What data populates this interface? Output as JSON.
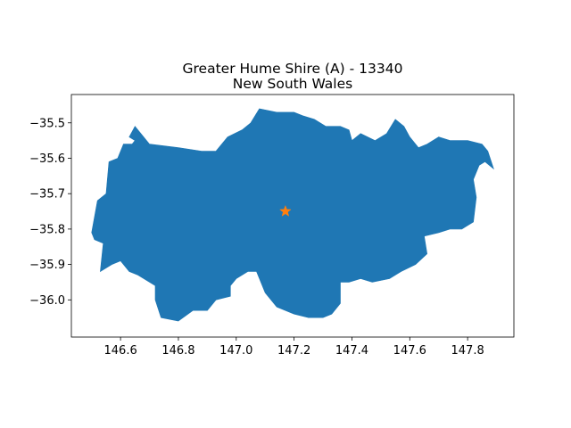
{
  "title": {
    "line1": "Greater Hume Shire (A) - 13340",
    "line2": "New South Wales"
  },
  "colors": {
    "region_fill": "#1f77b4",
    "marker": "#ff7f0e",
    "axes": "#000000",
    "background": "#ffffff"
  },
  "chart_data": {
    "type": "map",
    "xlim": [
      146.43,
      147.96
    ],
    "ylim": [
      -36.105,
      -35.42
    ],
    "x_ticks": [
      146.6,
      146.8,
      147.0,
      147.2,
      147.4,
      147.6,
      147.8
    ],
    "x_tick_labels": [
      "146.6",
      "146.8",
      "147.0",
      "147.2",
      "147.4",
      "147.6",
      "147.8"
    ],
    "y_ticks": [
      -35.5,
      -35.6,
      -35.7,
      -35.8,
      -35.9,
      -36.0
    ],
    "y_tick_labels": [
      "−35.5",
      "−35.6",
      "−35.7",
      "−35.8",
      "−35.9",
      "−36.0"
    ],
    "grid": false,
    "marker": {
      "symbol": "star",
      "lon": 147.17,
      "lat": -35.75
    },
    "region_outline": [
      [
        146.5,
        -35.81
      ],
      [
        146.52,
        -35.72
      ],
      [
        146.55,
        -35.7
      ],
      [
        146.56,
        -35.61
      ],
      [
        146.59,
        -35.6
      ],
      [
        146.61,
        -35.56
      ],
      [
        146.64,
        -35.56
      ],
      [
        146.65,
        -35.55
      ],
      [
        146.63,
        -35.54
      ],
      [
        146.65,
        -35.51
      ],
      [
        146.7,
        -35.56
      ],
      [
        146.8,
        -35.57
      ],
      [
        146.88,
        -35.58
      ],
      [
        146.93,
        -35.58
      ],
      [
        146.97,
        -35.54
      ],
      [
        147.02,
        -35.52
      ],
      [
        147.05,
        -35.5
      ],
      [
        147.08,
        -35.46
      ],
      [
        147.14,
        -35.47
      ],
      [
        147.18,
        -35.47
      ],
      [
        147.2,
        -35.47
      ],
      [
        147.23,
        -35.48
      ],
      [
        147.27,
        -35.49
      ],
      [
        147.31,
        -35.51
      ],
      [
        147.36,
        -35.51
      ],
      [
        147.39,
        -35.52
      ],
      [
        147.4,
        -35.55
      ],
      [
        147.43,
        -35.53
      ],
      [
        147.48,
        -35.55
      ],
      [
        147.52,
        -35.53
      ],
      [
        147.55,
        -35.49
      ],
      [
        147.58,
        -35.51
      ],
      [
        147.6,
        -35.54
      ],
      [
        147.63,
        -35.57
      ],
      [
        147.66,
        -35.56
      ],
      [
        147.7,
        -35.54
      ],
      [
        147.74,
        -35.55
      ],
      [
        147.8,
        -35.55
      ],
      [
        147.85,
        -35.56
      ],
      [
        147.87,
        -35.58
      ],
      [
        147.89,
        -35.63
      ],
      [
        147.86,
        -35.61
      ],
      [
        147.84,
        -35.62
      ],
      [
        147.82,
        -35.66
      ],
      [
        147.83,
        -35.71
      ],
      [
        147.82,
        -35.78
      ],
      [
        147.78,
        -35.8
      ],
      [
        147.74,
        -35.8
      ],
      [
        147.7,
        -35.81
      ],
      [
        147.65,
        -35.82
      ],
      [
        147.66,
        -35.87
      ],
      [
        147.62,
        -35.9
      ],
      [
        147.57,
        -35.92
      ],
      [
        147.53,
        -35.94
      ],
      [
        147.47,
        -35.95
      ],
      [
        147.43,
        -35.94
      ],
      [
        147.39,
        -35.95
      ],
      [
        147.36,
        -35.95
      ],
      [
        147.36,
        -36.01
      ],
      [
        147.33,
        -36.04
      ],
      [
        147.3,
        -36.05
      ],
      [
        147.25,
        -36.05
      ],
      [
        147.2,
        -36.04
      ],
      [
        147.14,
        -36.02
      ],
      [
        147.1,
        -35.98
      ],
      [
        147.07,
        -35.92
      ],
      [
        147.04,
        -35.92
      ],
      [
        147.0,
        -35.94
      ],
      [
        146.98,
        -35.96
      ],
      [
        146.98,
        -35.99
      ],
      [
        146.93,
        -36.0
      ],
      [
        146.9,
        -36.03
      ],
      [
        146.85,
        -36.03
      ],
      [
        146.8,
        -36.06
      ],
      [
        146.74,
        -36.05
      ],
      [
        146.72,
        -36.0
      ],
      [
        146.72,
        -35.96
      ],
      [
        146.66,
        -35.93
      ],
      [
        146.63,
        -35.92
      ],
      [
        146.6,
        -35.89
      ],
      [
        146.57,
        -35.9
      ],
      [
        146.53,
        -35.92
      ],
      [
        146.54,
        -35.84
      ],
      [
        146.51,
        -35.83
      ]
    ]
  }
}
